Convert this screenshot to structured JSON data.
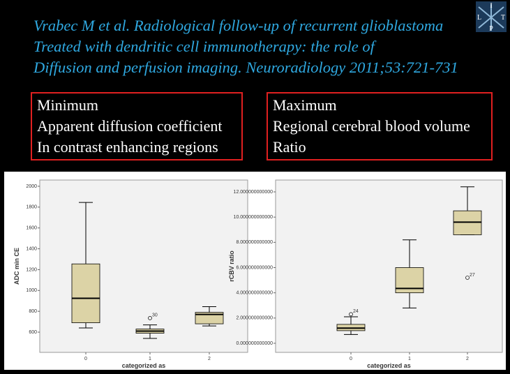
{
  "slide": {
    "title_lines": [
      "Vrabec M et al. Radiological follow-up of recurrent glioblastoma",
      "Treated with dendritic cell immunotherapy: the role of",
      "Diffusion and perfusion imaging. Neuroradiology 2011;53:721-731"
    ],
    "logo": [
      "I",
      "L",
      "T",
      "P"
    ],
    "boxes": [
      [
        "Minimum",
        "Apparent diffusion coefficient",
        "In contrast enhancing regions"
      ],
      [
        "Maximum",
        "Regional cerebral blood volume",
        "Ratio"
      ]
    ]
  },
  "chart_data": [
    {
      "type": "boxplot",
      "xlabel": "categorized as",
      "ylabel": "ADC min CE",
      "color": "#dcd3a6",
      "categories": [
        "0",
        "1",
        "2"
      ],
      "boxes": [
        {
          "min": 640,
          "q1": 690,
          "median": 925,
          "q3": 1255,
          "max": 1845
        },
        {
          "min": 540,
          "q1": 590,
          "median": 610,
          "q3": 630,
          "max": 670
        },
        {
          "min": 660,
          "q1": 680,
          "median": 770,
          "q3": 790,
          "max": 845
        }
      ],
      "outliers": [
        {
          "category": 1,
          "value": 735,
          "label": "30"
        }
      ],
      "ylim": [
        406,
        2060
      ],
      "yticks": [
        600,
        800,
        1000,
        1200,
        1400,
        1600,
        1800,
        2000
      ]
    },
    {
      "type": "boxplot",
      "xlabel": "categorized as",
      "ylabel": "rCBV ratio",
      "color": "#dcd3a6",
      "categories": [
        "0",
        "1",
        "2"
      ],
      "boxes": [
        {
          "min": 0.7,
          "q1": 1.0,
          "median": 1.2,
          "q3": 1.5,
          "max": 2.1
        },
        {
          "min": 2.8,
          "q1": 4.0,
          "median": 4.35,
          "q3": 6.0,
          "max": 8.2
        },
        {
          "min": 8.6,
          "q1": 8.6,
          "median": 9.6,
          "q3": 10.5,
          "max": 12.4
        }
      ],
      "outliers": [
        {
          "category": 0,
          "value": 2.3,
          "label": "24"
        },
        {
          "category": 2,
          "value": 5.2,
          "label": "27"
        }
      ],
      "ylim": [
        -0.72,
        12.94
      ],
      "yticks": [
        {
          "value": 0,
          "label": "0.000000000000"
        },
        {
          "value": 2,
          "label": "2.000000000000"
        },
        {
          "value": 4,
          "label": "4.000000000000"
        },
        {
          "value": 6,
          "label": "6.000000000000"
        },
        {
          "value": 8,
          "label": "8.000000000000"
        },
        {
          "value": 10,
          "label": "10.000000000000"
        },
        {
          "value": 12,
          "label": "12.000000000000"
        }
      ]
    }
  ]
}
